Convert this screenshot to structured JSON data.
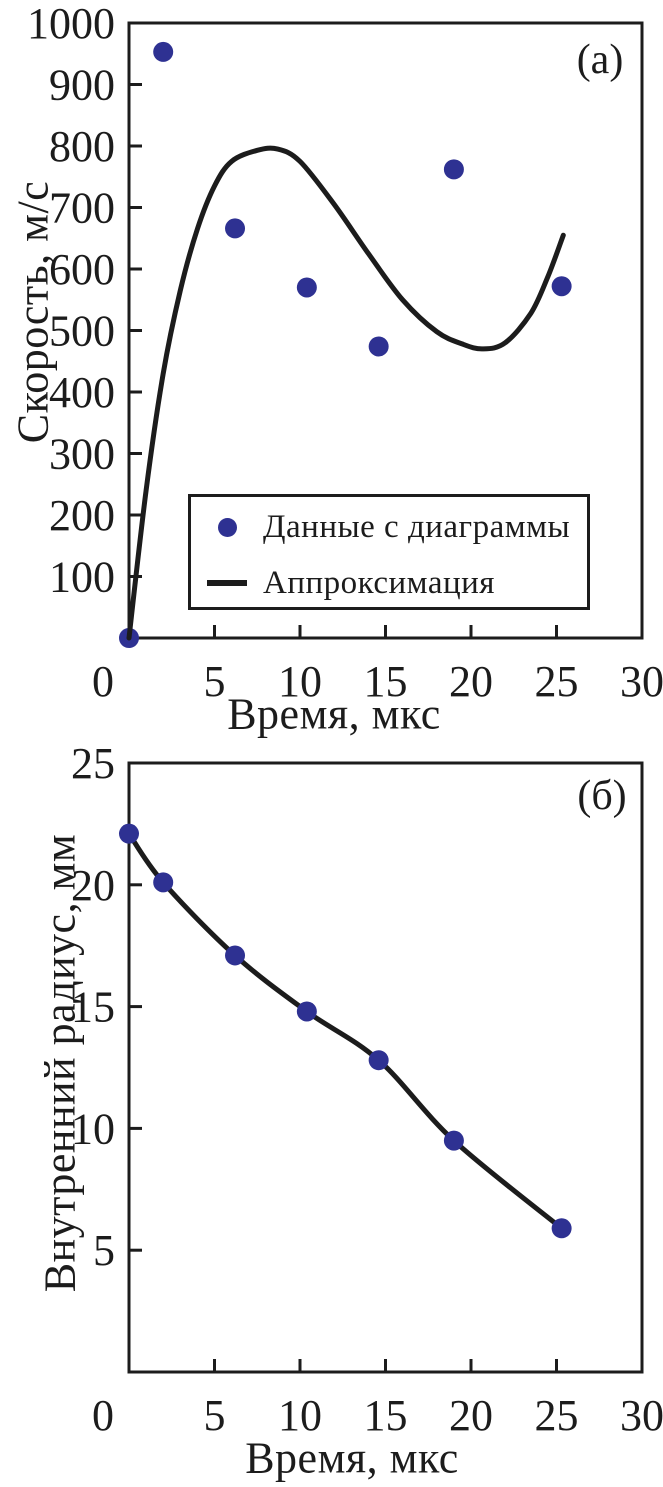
{
  "figure": {
    "background": "#ffffff",
    "ink_color": "#1c1c1c",
    "marker_color": "#2e3192"
  },
  "chart_data": [
    {
      "type": "scatter",
      "panel_label": "(а)",
      "xlabel": "Время, мкс",
      "ylabel": "Скорость, м/с",
      "xlim": [
        0,
        30
      ],
      "ylim": [
        0,
        1000
      ],
      "xticks": [
        0,
        5,
        10,
        15,
        20,
        25,
        30
      ],
      "yticks": [
        100,
        200,
        300,
        400,
        500,
        600,
        700,
        800,
        900,
        1000
      ],
      "grid": false,
      "legend_position": "inside lower center",
      "series": [
        {
          "name": "Данные с диаграммы",
          "kind": "scatter",
          "color": "#2e3192",
          "x": [
            0,
            2.0,
            6.2,
            10.4,
            14.6,
            19.0,
            25.3
          ],
          "y": [
            0,
            953,
            666,
            570,
            474,
            762,
            572
          ]
        },
        {
          "name": "Аппроксимация",
          "kind": "line",
          "color": "#1c1c1c",
          "x": [
            0,
            1,
            2,
            3,
            4,
            5,
            6,
            7.5,
            8.7,
            10,
            12,
            14,
            16,
            18,
            19.5,
            20.7,
            22,
            23.5,
            24.5,
            25.4
          ],
          "y": [
            0,
            240,
            430,
            565,
            665,
            735,
            775,
            793,
            795,
            775,
            705,
            625,
            550,
            498,
            478,
            470,
            480,
            528,
            588,
            655
          ]
        }
      ]
    },
    {
      "type": "line",
      "panel_label": "(б)",
      "xlabel": "Время, мкс",
      "ylabel": "Внутренний радиус, мм",
      "xlim": [
        0,
        30
      ],
      "ylim": [
        0,
        25
      ],
      "xticks": [
        0,
        5,
        10,
        15,
        20,
        25,
        30
      ],
      "yticks": [
        5,
        10,
        15,
        20,
        25
      ],
      "grid": false,
      "series": [
        {
          "name": "Внутренний радиус",
          "kind": "line+scatter",
          "color": "#1c1c1c",
          "marker_color": "#2e3192",
          "x": [
            0,
            2.0,
            6.2,
            10.4,
            14.6,
            19.0,
            25.3
          ],
          "y": [
            22.1,
            20.1,
            17.1,
            14.8,
            12.8,
            9.5,
            5.9
          ]
        }
      ]
    }
  ],
  "legend": {
    "entries": [
      {
        "label": "Данные с диаграммы",
        "marker": "dot"
      },
      {
        "label": "Аппроксимация",
        "marker": "line"
      }
    ]
  }
}
